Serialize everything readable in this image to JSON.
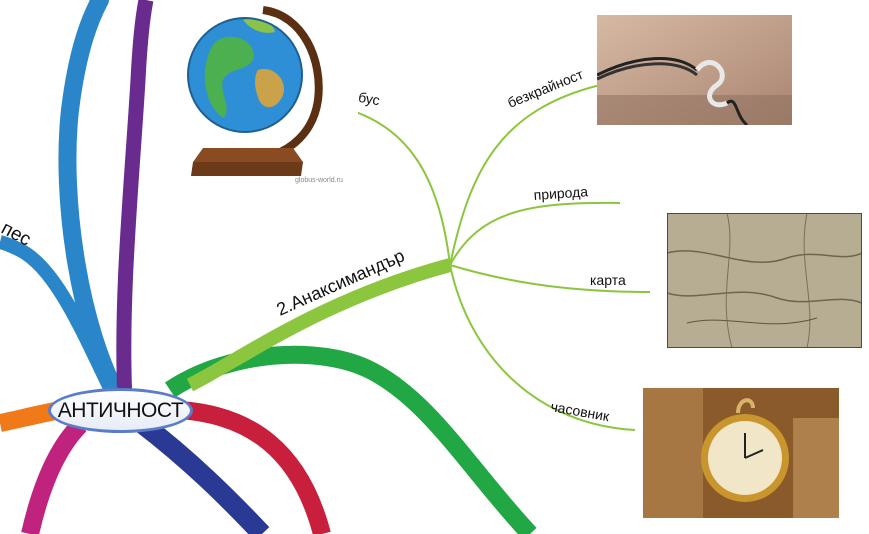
{
  "center": {
    "label": "АНТИЧНОСТ"
  },
  "branches": {
    "left_partial": "пес",
    "main": "2.Анаксимандър"
  },
  "sub_branches": [
    {
      "label": "глобус"
    },
    {
      "label": "безкрайност"
    },
    {
      "label": "природа"
    },
    {
      "label": "карта"
    },
    {
      "label": "часовник"
    }
  ],
  "images": {
    "globe": {
      "icon": "globe-image",
      "watermark": "globus-world.ru"
    },
    "bracelet": {
      "icon": "infinity-bracelet-image"
    },
    "map": {
      "icon": "old-map-image"
    },
    "watch": {
      "icon": "pocket-watch-image"
    }
  },
  "colors": {
    "blue": "#2a86c8",
    "purple": "#6a2b8e",
    "orange": "#f07a1a",
    "magenta": "#c0237e",
    "navy": "#2a3a94",
    "red": "#c81f3c",
    "green": "#21a845",
    "lightgreen": "#8cc63f"
  }
}
